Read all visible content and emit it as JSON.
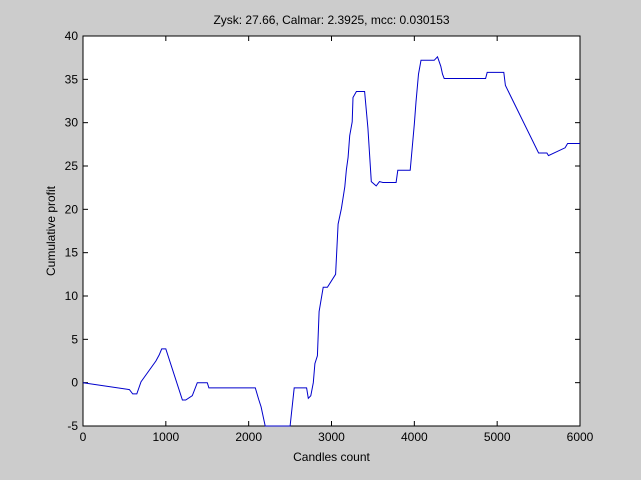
{
  "chart_data": {
    "type": "line",
    "title": "Zysk: 27.66, Calmar: 2.3925, mcc: 0.030153",
    "xlabel": "Candles count",
    "ylabel": "Cumulative profit",
    "xlim": [
      0,
      6000
    ],
    "ylim": [
      -5,
      40
    ],
    "xticks": [
      0,
      1000,
      2000,
      3000,
      4000,
      5000,
      6000
    ],
    "yticks": [
      -5,
      0,
      5,
      10,
      15,
      20,
      25,
      30,
      35,
      40
    ],
    "grid": false,
    "legend": "none",
    "line_color": "#0000cc",
    "series": [
      {
        "x": [
          0,
          560,
          600,
          650,
          700,
          880,
          920,
          950,
          1000,
          1200,
          1240,
          1320,
          1380,
          1500,
          1520,
          2080,
          2120,
          2150,
          2200,
          2500,
          2550,
          2700,
          2720,
          2750,
          2780,
          2800,
          2830,
          2850,
          2900,
          2950,
          3050,
          3080,
          3120,
          3160,
          3180,
          3200,
          3220,
          3250,
          3260,
          3300,
          3400,
          3440,
          3480,
          3540,
          3580,
          3620,
          3650,
          3780,
          3800,
          3830,
          3950,
          4000,
          4020,
          4050,
          4080,
          4100,
          4120,
          4140,
          4180,
          4240,
          4280,
          4320,
          4340,
          4360,
          4400,
          4860,
          4880,
          5050,
          5080,
          5100,
          5500,
          5560,
          5600,
          5620,
          5820,
          5850,
          6000
        ],
        "y": [
          0,
          -0.8,
          -1.3,
          -1.3,
          0.1,
          2.5,
          3.2,
          3.9,
          3.9,
          -2,
          -2,
          -1.5,
          0,
          0,
          -0.6,
          -0.6,
          -1.9,
          -2.8,
          -5,
          -5,
          -0.6,
          -0.6,
          -1.8,
          -1.5,
          0,
          2.2,
          3.1,
          8.2,
          11,
          11,
          12.5,
          18.3,
          20.1,
          22.6,
          24.6,
          26,
          28.5,
          30.1,
          32.9,
          33.6,
          33.6,
          29.4,
          23.2,
          22.7,
          23.2,
          23.1,
          23.1,
          23.1,
          24.5,
          24.5,
          24.5,
          29.8,
          32.4,
          35.6,
          37.2,
          37.2,
          37.2,
          37.2,
          37.2,
          37.2,
          37.6,
          36.5,
          35.6,
          35.1,
          35.1,
          35.1,
          35.8,
          35.8,
          35.8,
          34.3,
          26.5,
          26.5,
          26.5,
          26.2,
          27.1,
          27.6,
          27.6
        ]
      }
    ]
  }
}
